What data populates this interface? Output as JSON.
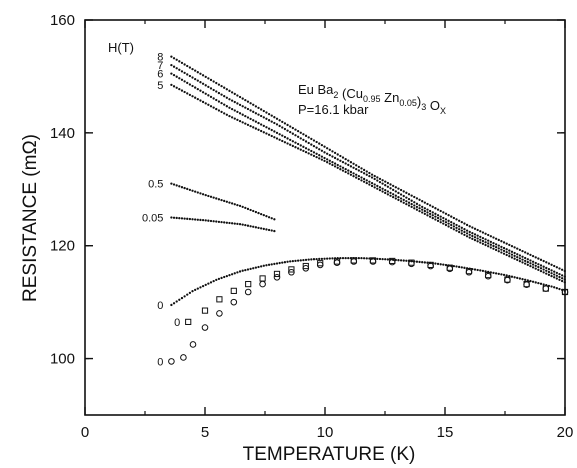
{
  "chart_data": {
    "type": "scatter",
    "title": "",
    "xlabel": "TEMPERATURE (K)",
    "ylabel": "RESISTANCE (mΩ)",
    "xlim": [
      0,
      20
    ],
    "ylim": [
      90,
      160
    ],
    "xticks": [
      0,
      5,
      10,
      15,
      20
    ],
    "yticks": [
      100,
      120,
      140,
      160
    ],
    "grid": false,
    "legend_title": "H(T)",
    "annotation": {
      "formula_parts": [
        {
          "text": "Eu Ba",
          "sub": false
        },
        {
          "text": "2",
          "sub": true
        },
        {
          "text": " (Cu",
          "sub": false
        },
        {
          "text": "0.95",
          "sub": true
        },
        {
          "text": " Zn",
          "sub": false
        },
        {
          "text": "0.05",
          "sub": true
        },
        {
          "text": ")",
          "sub": false
        },
        {
          "text": "3",
          "sub": true
        },
        {
          "text": " O",
          "sub": false
        },
        {
          "text": "X",
          "sub": true
        }
      ],
      "pressure": "P=16.1 kbar"
    },
    "series": [
      {
        "name": "8",
        "marker": "dot",
        "x": [
          3.6,
          6,
          8,
          10,
          12,
          14,
          16,
          18,
          20
        ],
        "y": [
          153.5,
          147.5,
          142.5,
          137.5,
          132.5,
          128,
          123.5,
          119.5,
          115.5
        ]
      },
      {
        "name": "7",
        "marker": "dot",
        "x": [
          3.6,
          6,
          8,
          10,
          12,
          14,
          16,
          18,
          20
        ],
        "y": [
          152,
          146,
          141.5,
          136.5,
          132,
          127,
          122.5,
          118.5,
          114.5
        ]
      },
      {
        "name": "6",
        "marker": "dot",
        "x": [
          3.6,
          6,
          8,
          10,
          12,
          14,
          16,
          18,
          20
        ],
        "y": [
          150.5,
          144.5,
          140,
          135.5,
          131,
          126.5,
          122,
          118,
          114
        ]
      },
      {
        "name": "5",
        "marker": "dot",
        "x": [
          3.6,
          6,
          8,
          10,
          12,
          14,
          16,
          18,
          20
        ],
        "y": [
          148.5,
          143,
          139,
          135,
          130.5,
          126,
          121.5,
          117.5,
          113.5
        ]
      },
      {
        "name": "0.5",
        "marker": "dot",
        "x": [
          3.6,
          5,
          6.5,
          8
        ],
        "y": [
          131,
          129,
          127,
          124.5
        ]
      },
      {
        "name": "0.05",
        "marker": "dot",
        "x": [
          3.6,
          5,
          6.5,
          8
        ],
        "y": [
          125,
          124.5,
          123.8,
          122.5
        ]
      },
      {
        "name": "0",
        "marker": "dot",
        "x": [
          3.6,
          4.5,
          5.5,
          6.5,
          7.5,
          8.5,
          9.5,
          10.5,
          11.5,
          12.5,
          13.5,
          14.5,
          15.5,
          16.5,
          17.5,
          18.5,
          19.5,
          20
        ],
        "y": [
          109.5,
          112,
          114,
          115.5,
          116.5,
          117.2,
          117.6,
          117.8,
          117.8,
          117.6,
          117.3,
          116.9,
          116.3,
          115.6,
          114.8,
          113.8,
          112.7,
          112
        ]
      },
      {
        "name": "0",
        "marker": "square",
        "x": [
          4.3,
          5,
          5.6,
          6.2,
          6.8,
          7.4,
          8,
          8.6,
          9.2,
          9.8,
          10.5,
          11.2,
          12,
          12.8,
          13.6,
          14.4,
          15.2,
          16,
          16.8,
          17.6,
          18.4,
          19.2,
          20
        ],
        "y": [
          106.5,
          108.5,
          110.5,
          112,
          113.2,
          114.2,
          115,
          115.8,
          116.4,
          116.9,
          117.2,
          117.4,
          117.4,
          117.3,
          117,
          116.6,
          116.1,
          115.5,
          114.8,
          114,
          113.2,
          112.4,
          111.8
        ]
      },
      {
        "name": "0",
        "marker": "circle",
        "x": [
          3.6,
          4.1,
          4.5,
          5,
          5.6,
          6.2,
          6.8,
          7.4,
          8,
          8.6,
          9.2,
          9.8,
          10.5,
          11.2,
          12,
          12.8,
          13.6,
          14.4,
          15.2,
          16,
          16.8,
          17.6,
          18.4,
          19.2,
          20
        ],
        "y": [
          99.5,
          100.2,
          102.5,
          105.5,
          108,
          110,
          111.8,
          113.2,
          114.4,
          115.3,
          116,
          116.6,
          117,
          117.2,
          117.2,
          117.1,
          116.8,
          116.4,
          115.9,
          115.3,
          114.6,
          113.9,
          113.1,
          112.4,
          111.8
        ]
      }
    ]
  }
}
